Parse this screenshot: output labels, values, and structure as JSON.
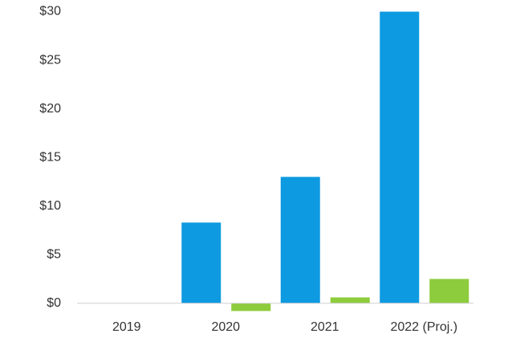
{
  "chart_data": {
    "type": "bar",
    "categories": [
      "2019",
      "2020",
      "2021",
      "2022 (Proj.)"
    ],
    "series": [
      {
        "color": "#0d9ae0",
        "values": [
          null,
          8.3,
          13.0,
          30
        ]
      },
      {
        "color": "#8dcc3c",
        "values": [
          null,
          -0.8,
          0.6,
          2.5
        ]
      }
    ],
    "ylim": [
      -4.4,
      31.2
    ],
    "yticks": [
      {
        "value": 0,
        "label": "$0"
      },
      {
        "value": 5,
        "label": "$5"
      },
      {
        "value": 10,
        "label": "$10"
      },
      {
        "value": 15,
        "label": "$15"
      },
      {
        "value": 20,
        "label": "$20"
      },
      {
        "value": 25,
        "label": "$25"
      },
      {
        "value": 30,
        "label": "$30"
      }
    ]
  }
}
